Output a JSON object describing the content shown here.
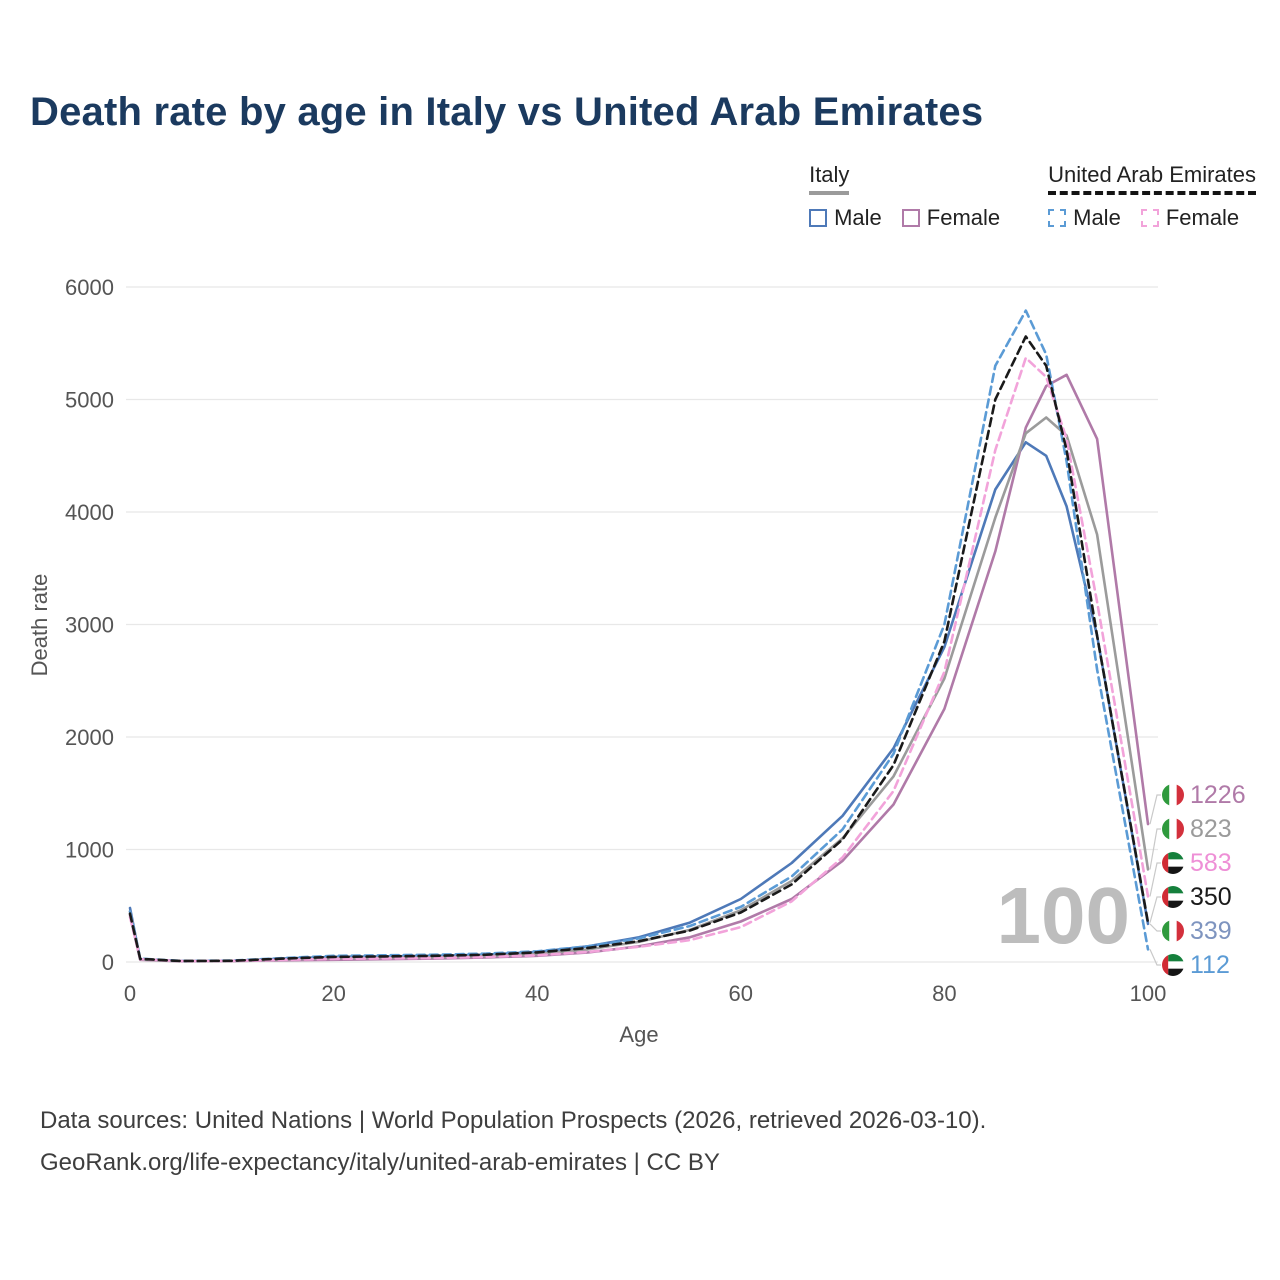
{
  "title": "Death rate by age in Italy vs United Arab Emirates",
  "legend": {
    "groups": [
      {
        "label": "Italy",
        "underline": "solid",
        "underline_color": "#9b9b9b",
        "items": [
          {
            "label": "Male",
            "color": "#4e79b8",
            "dash": false
          },
          {
            "label": "Female",
            "color": "#b07aa8",
            "dash": false
          }
        ]
      },
      {
        "label": "United Arab Emirates",
        "underline": "dashed",
        "underline_color": "#141414",
        "items": [
          {
            "label": "Male",
            "color": "#5b9bd5",
            "dash": true
          },
          {
            "label": "Female",
            "color": "#f2a3da",
            "dash": true
          }
        ]
      }
    ]
  },
  "axes": {
    "x": {
      "label": "Age",
      "ticks": [
        0,
        20,
        40,
        60,
        80,
        100
      ],
      "range": [
        0,
        100
      ]
    },
    "y": {
      "label": "Death rate",
      "ticks": [
        0,
        1000,
        2000,
        3000,
        4000,
        5000,
        6000
      ],
      "range": [
        0,
        6000
      ]
    }
  },
  "watermark": "100",
  "end_labels": [
    {
      "value": "1226",
      "flag": "italy",
      "color": "#b07aa8"
    },
    {
      "value": "823",
      "flag": "italy",
      "color": "#9b9b9b"
    },
    {
      "value": "583",
      "flag": "uae",
      "color": "#ee8fd6"
    },
    {
      "value": "350",
      "flag": "uae",
      "color": "#1a1a1a"
    },
    {
      "value": "339",
      "flag": "italy",
      "color": "#7e94bf"
    },
    {
      "value": "112",
      "flag": "uae",
      "color": "#5b9bd5"
    }
  ],
  "footer": {
    "line1": "Data sources: United Nations | World Population Prospects (2026, retrieved 2026-03-10).",
    "line2": "GeoRank.org/life-expectancy/italy/united-arab-emirates | CC BY"
  },
  "chart_data": {
    "type": "line",
    "title": "Death rate by age in Italy vs United Arab Emirates",
    "xlabel": "Age",
    "ylabel": "Death rate",
    "xlim": [
      0,
      100
    ],
    "ylim": [
      0,
      6000
    ],
    "grid": "horizontal",
    "x": [
      0,
      1,
      5,
      10,
      15,
      20,
      25,
      30,
      35,
      40,
      45,
      50,
      55,
      60,
      65,
      70,
      75,
      80,
      85,
      88,
      90,
      92,
      95,
      100
    ],
    "series": [
      {
        "name": "Italy Male",
        "country": "Italy",
        "sex": "Male",
        "style": "solid",
        "color": "#4e79b8",
        "values": [
          480,
          25,
          8,
          10,
          30,
          45,
          50,
          55,
          65,
          90,
          140,
          220,
          350,
          560,
          880,
          1300,
          1900,
          2800,
          4200,
          4620,
          4500,
          4050,
          2900,
          339
        ]
      },
      {
        "name": "Italy Female",
        "country": "Italy",
        "sex": "Female",
        "style": "solid",
        "color": "#b07aa8",
        "values": [
          420,
          20,
          6,
          8,
          15,
          20,
          25,
          30,
          40,
          55,
          85,
          140,
          220,
          360,
          560,
          900,
          1400,
          2250,
          3650,
          4750,
          5120,
          5220,
          4650,
          1226
        ]
      },
      {
        "name": "Italy Total",
        "country": "Italy",
        "sex": "Total",
        "style": "solid",
        "color": "#9b9b9b",
        "values": [
          450,
          22,
          7,
          9,
          22,
          33,
          38,
          42,
          52,
          72,
          112,
          180,
          285,
          460,
          720,
          1100,
          1650,
          2520,
          3950,
          4700,
          4840,
          4680,
          3800,
          823
        ]
      },
      {
        "name": "United Arab Emirates Male",
        "country": "United Arab Emirates",
        "sex": "Male",
        "style": "dashed",
        "color": "#5b9bd5",
        "values": [
          450,
          30,
          10,
          12,
          35,
          55,
          60,
          65,
          75,
          95,
          140,
          210,
          320,
          490,
          760,
          1180,
          1850,
          3000,
          5300,
          5790,
          5400,
          4450,
          2600,
          112
        ]
      },
      {
        "name": "United Arab Emirates Female",
        "country": "United Arab Emirates",
        "sex": "Female",
        "style": "dashed",
        "color": "#f2a3da",
        "values": [
          400,
          25,
          8,
          10,
          20,
          28,
          32,
          36,
          45,
          60,
          90,
          135,
          195,
          310,
          540,
          930,
          1520,
          2580,
          4550,
          5370,
          5200,
          4650,
          3200,
          583
        ]
      },
      {
        "name": "United Arab Emirates Total",
        "country": "United Arab Emirates",
        "sex": "Total",
        "style": "dashed",
        "color": "#1a1a1a",
        "values": [
          430,
          28,
          9,
          11,
          30,
          45,
          50,
          55,
          65,
          85,
          125,
          185,
          280,
          440,
          690,
          1090,
          1750,
          2850,
          5000,
          5560,
          5300,
          4550,
          2900,
          350
        ]
      }
    ]
  }
}
